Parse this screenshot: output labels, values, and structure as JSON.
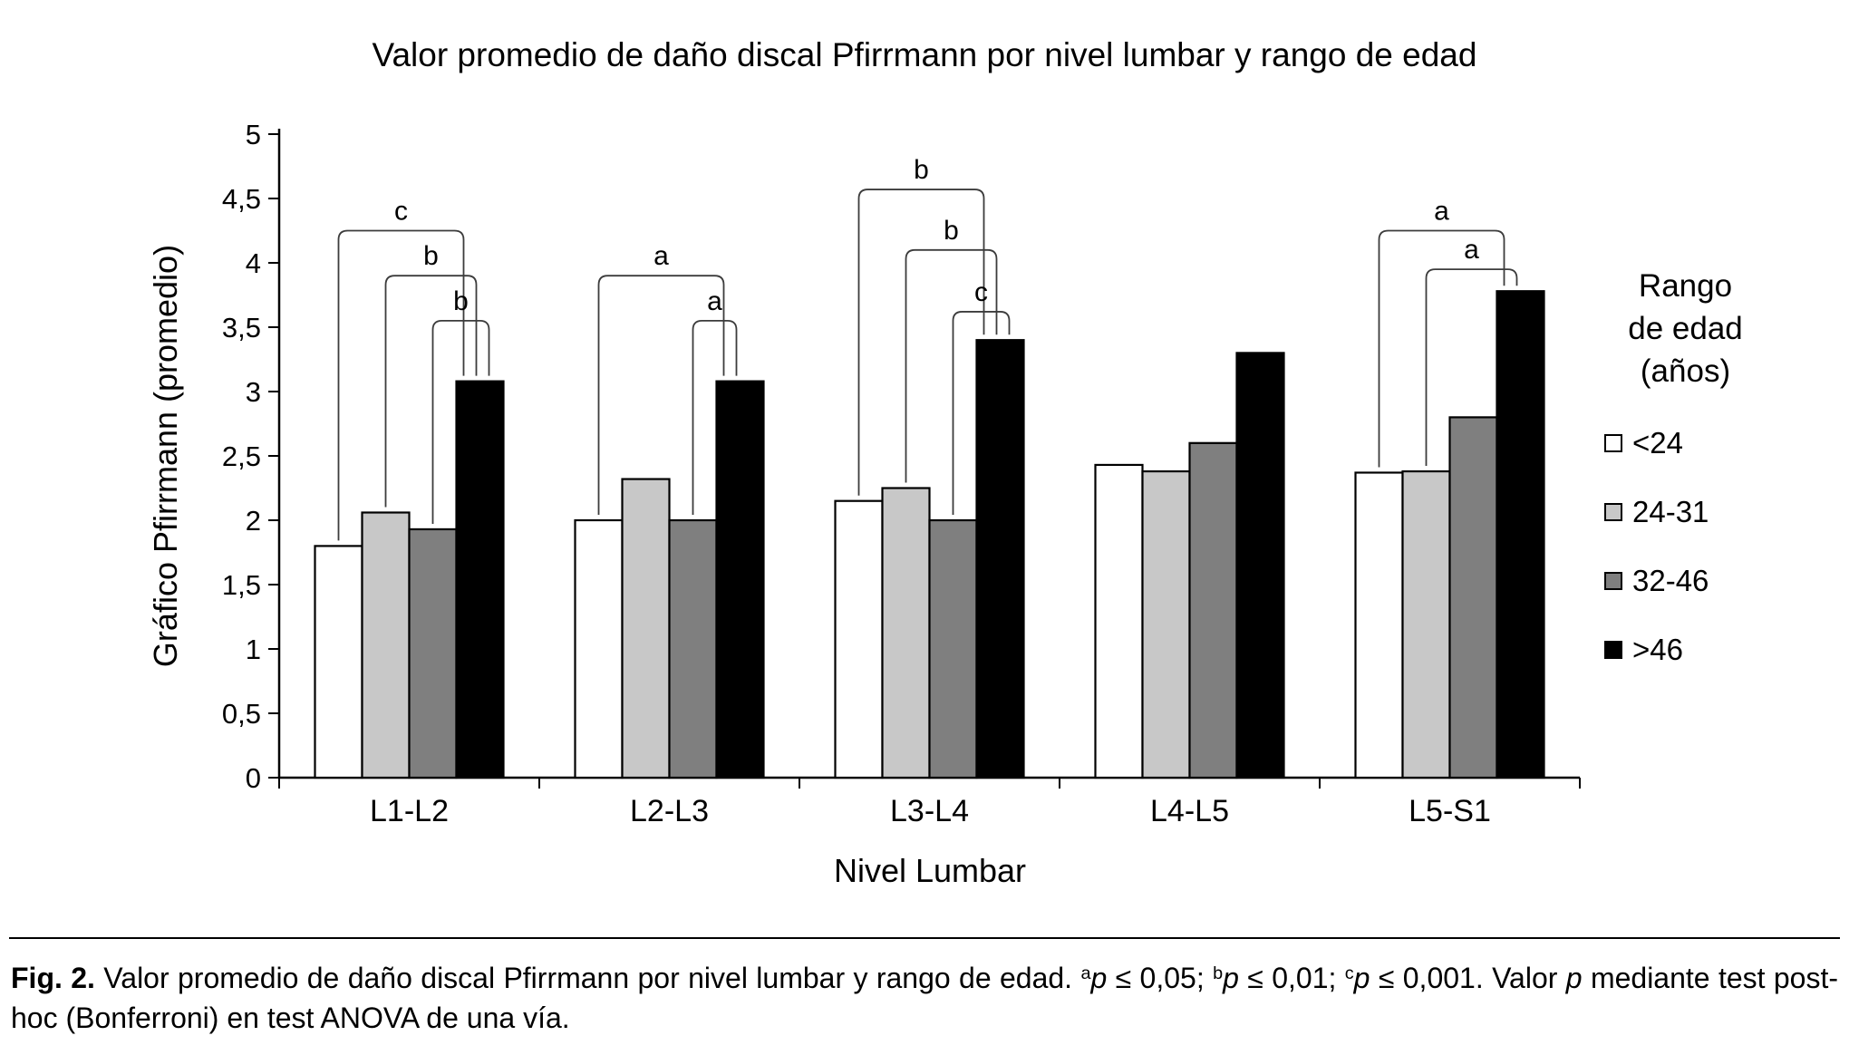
{
  "chart_data": {
    "type": "bar",
    "title": "Valor promedio de daño discal Pfirrmann por nivel lumbar y rango de edad",
    "xlabel": "Nivel Lumbar",
    "ylabel": "Gráfico Pfirrmann (promedio)",
    "ylim": [
      0,
      5
    ],
    "ytick_step": 0.5,
    "ytick_labels": [
      "0",
      "0,5",
      "1",
      "1,5",
      "2",
      "2,5",
      "3",
      "3,5",
      "4",
      "4,5",
      "5"
    ],
    "grid": false,
    "legend_position": "right",
    "legend_title": "Rango de edad (años)",
    "categories": [
      "L1-L2",
      "L2-L3",
      "L3-L4",
      "L4-L5",
      "L5-S1"
    ],
    "series": [
      {
        "name": "<24",
        "color": "#ffffff",
        "border": "#000000",
        "values": [
          1.8,
          2.0,
          2.15,
          2.43,
          2.37
        ]
      },
      {
        "name": "24-31",
        "color": "#c8c8c8",
        "border": "#000000",
        "values": [
          2.06,
          2.32,
          2.25,
          2.38,
          2.38
        ]
      },
      {
        "name": "32-46",
        "color": "#7f7f7f",
        "border": "#000000",
        "values": [
          1.93,
          2.0,
          2.0,
          2.6,
          2.8
        ]
      },
      {
        "name": ">46",
        "color": "#000000",
        "border": "#000000",
        "values": [
          3.08,
          3.08,
          3.4,
          3.3,
          3.78
        ]
      }
    ],
    "significance_brackets": [
      {
        "category": "L1-L2",
        "label": "c",
        "from_series": 0,
        "to_series": 3,
        "height": 4.25
      },
      {
        "category": "L1-L2",
        "label": "b",
        "from_series": 1,
        "to_series": 3,
        "height": 3.9
      },
      {
        "category": "L1-L2",
        "label": "b",
        "from_series": 2,
        "to_series": 3,
        "height": 3.55
      },
      {
        "category": "L2-L3",
        "label": "a",
        "from_series": 0,
        "to_series": 3,
        "height": 3.9
      },
      {
        "category": "L2-L3",
        "label": "a",
        "from_series": 2,
        "to_series": 3,
        "height": 3.55
      },
      {
        "category": "L3-L4",
        "label": "b",
        "from_series": 0,
        "to_series": 3,
        "height": 4.57
      },
      {
        "category": "L3-L4",
        "label": "b",
        "from_series": 1,
        "to_series": 3,
        "height": 4.1
      },
      {
        "category": "L3-L4",
        "label": "c",
        "from_series": 2,
        "to_series": 3,
        "height": 3.62
      },
      {
        "category": "L5-S1",
        "label": "a",
        "from_series": 0,
        "to_series": 3,
        "height": 4.25
      },
      {
        "category": "L5-S1",
        "label": "a",
        "from_series": 1,
        "to_series": 3,
        "height": 3.95
      }
    ]
  },
  "legend": {
    "title_lines": [
      "Rango",
      "de edad",
      "(años)"
    ]
  },
  "caption": {
    "segments": [
      {
        "text": "Fig. 2.",
        "bold": true
      },
      {
        "text": " Valor promedio de daño discal Pfirrmann por nivel lumbar y rango de edad. "
      },
      {
        "text": "a",
        "sup": true
      },
      {
        "text": "p",
        "italic": true
      },
      {
        "text": " ≤ 0,05; "
      },
      {
        "text": "b",
        "sup": true
      },
      {
        "text": "p",
        "italic": true
      },
      {
        "text": " ≤ 0,01; "
      },
      {
        "text": "c",
        "sup": true
      },
      {
        "text": "p",
        "italic": true
      },
      {
        "text": " ≤ 0,001. Valor "
      },
      {
        "text": "p",
        "italic": true
      },
      {
        "text": " mediante test post-hoc (Bonferroni) en test ANOVA de una vía."
      }
    ]
  }
}
